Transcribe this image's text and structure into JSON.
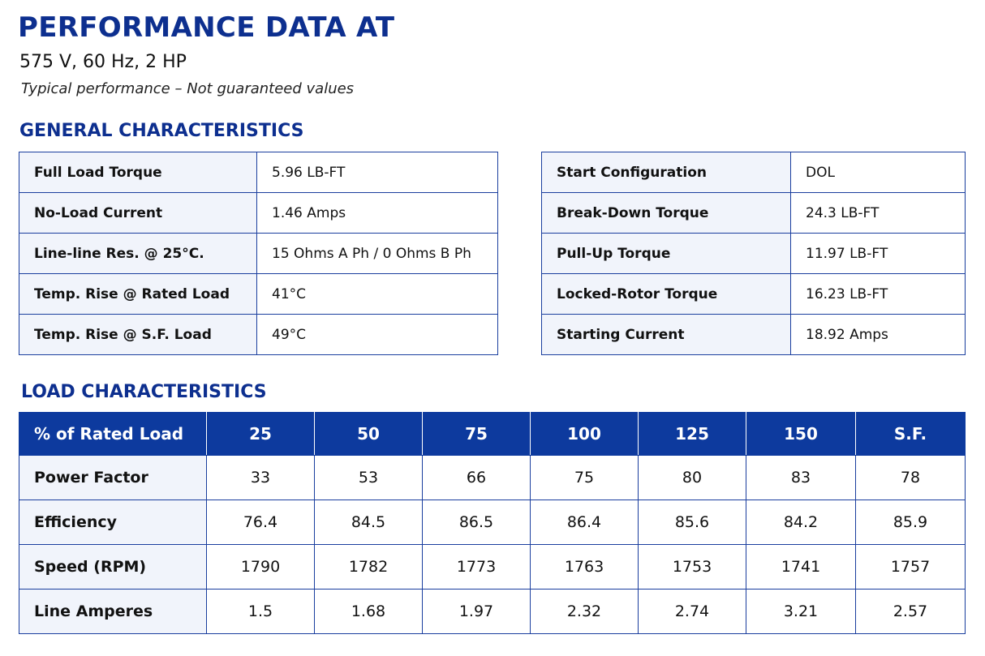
{
  "header": {
    "title": "PERFORMANCE DATA AT",
    "subtitle": "575 V, 60 Hz, 2 HP",
    "note": "Typical performance – Not guaranteed values"
  },
  "general": {
    "heading": "GENERAL CHARACTERISTICS",
    "left": [
      {
        "label": "Full Load Torque",
        "value": "5.96 LB-FT"
      },
      {
        "label": "No-Load Current",
        "value": "1.46 Amps"
      },
      {
        "label": "Line-line Res. @ 25°C.",
        "value": "15 Ohms A Ph / 0 Ohms B Ph"
      },
      {
        "label": "Temp. Rise @ Rated Load",
        "value": "41°C"
      },
      {
        "label": "Temp. Rise @ S.F. Load",
        "value": "49°C"
      }
    ],
    "right": [
      {
        "label": "Start Configuration",
        "value": "DOL"
      },
      {
        "label": "Break-Down Torque",
        "value": "24.3 LB-FT"
      },
      {
        "label": "Pull-Up Torque",
        "value": "11.97 LB-FT"
      },
      {
        "label": "Locked-Rotor Torque",
        "value": "16.23 LB-FT"
      },
      {
        "label": "Starting Current",
        "value": "18.92 Amps"
      }
    ]
  },
  "load": {
    "heading": "LOAD CHARACTERISTICS",
    "columns": [
      "% of Rated Load",
      "25",
      "50",
      "75",
      "100",
      "125",
      "150",
      "S.F."
    ],
    "rows": [
      {
        "label": "Power Factor",
        "values": [
          "33",
          "53",
          "66",
          "75",
          "80",
          "83",
          "78"
        ]
      },
      {
        "label": "Efficiency",
        "values": [
          "76.4",
          "84.5",
          "86.5",
          "86.4",
          "85.6",
          "84.2",
          "85.9"
        ]
      },
      {
        "label": "Speed (RPM)",
        "values": [
          "1790",
          "1782",
          "1773",
          "1763",
          "1753",
          "1741",
          "1757"
        ]
      },
      {
        "label": "Line Amperes",
        "values": [
          "1.5",
          "1.68",
          "1.97",
          "2.32",
          "2.74",
          "3.21",
          "2.57"
        ]
      }
    ]
  },
  "colors": {
    "brand": "#0d2f8f",
    "header_fill": "#0d3a9e",
    "label_fill": "#f1f4fb"
  }
}
